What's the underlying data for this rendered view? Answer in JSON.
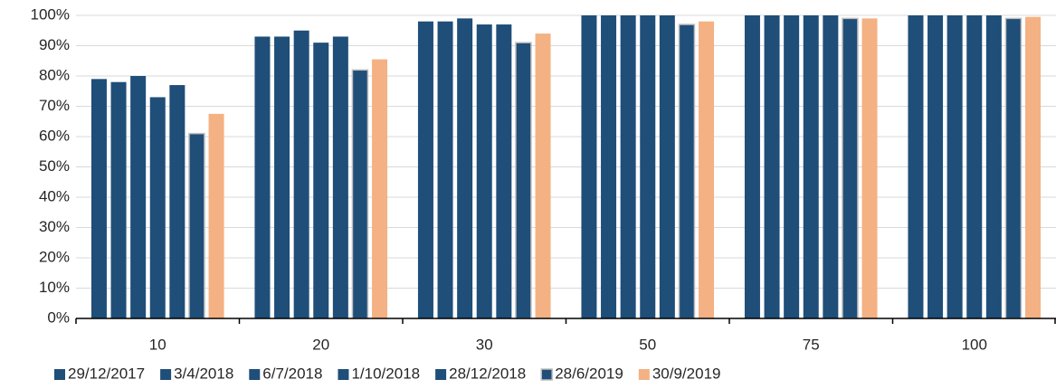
{
  "chart_data": {
    "type": "bar",
    "categories": [
      "10",
      "20",
      "30",
      "50",
      "75",
      "100"
    ],
    "series": [
      {
        "name": "29/12/2017",
        "color": "#1f4e79",
        "values": [
          79,
          93,
          98,
          100,
          100,
          100
        ]
      },
      {
        "name": "3/4/2018",
        "color": "#1f4e79",
        "values": [
          78,
          93,
          98,
          100,
          100,
          100
        ]
      },
      {
        "name": "6/7/2018",
        "color": "#1f4e79",
        "values": [
          80,
          95,
          99,
          100,
          100,
          100
        ]
      },
      {
        "name": "1/10/2018",
        "color": "#1f4e79",
        "values": [
          73,
          91,
          97,
          100,
          100,
          100
        ]
      },
      {
        "name": "28/12/2018",
        "color": "#1f4e79",
        "values": [
          77,
          93,
          97,
          100,
          100,
          100
        ]
      },
      {
        "name": "28/6/2019",
        "color": "#1f4e79",
        "edgecolor": "#bfbfbf",
        "values": [
          61,
          82,
          91,
          97,
          99,
          99
        ]
      },
      {
        "name": "30/9/2019",
        "color": "#f4b183",
        "values": [
          67.5,
          85.5,
          94,
          98,
          99,
          99.5
        ]
      }
    ],
    "ylim": [
      0,
      100
    ],
    "yticks": [
      {
        "value": 0,
        "label": "0%"
      },
      {
        "value": 10,
        "label": "10%"
      },
      {
        "value": 20,
        "label": "20%"
      },
      {
        "value": 30,
        "label": "30%"
      },
      {
        "value": 40,
        "label": "40%"
      },
      {
        "value": 50,
        "label": "50%"
      },
      {
        "value": 60,
        "label": "60%"
      },
      {
        "value": 70,
        "label": "70%"
      },
      {
        "value": 80,
        "label": "80%"
      },
      {
        "value": 90,
        "label": "90%"
      },
      {
        "value": 100,
        "label": "100%"
      }
    ],
    "grid": true,
    "legend": "bottom"
  }
}
